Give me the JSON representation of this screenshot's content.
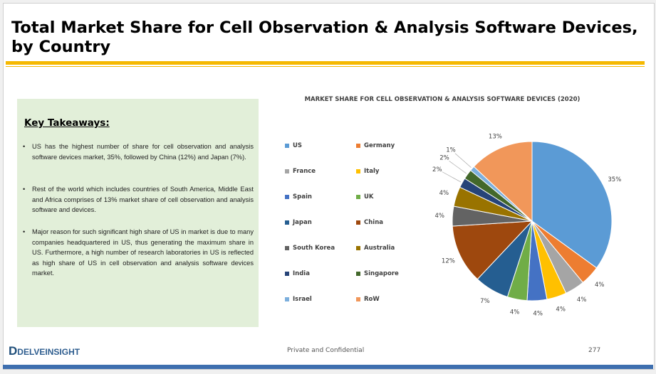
{
  "header": {
    "title": "Total Market Share for Cell Observation & Analysis Software Devices, by Country"
  },
  "takeaways": {
    "heading": "Key Takeaways:",
    "bullets": [
      "US has the highest number of share for cell observation and analysis software devices market, 35%, followed by China (12%) and Japan (7%).",
      "Rest of the world which includes countries of South America, Middle East and Africa comprises of 13% market share of cell observation and analysis software and devices.",
      "Major reason for such significant high share of US in market is due to many companies headquartered in US, thus generating the maximum share in US. Furthermore, a high number of research laboratories in US is reflected as high share of US in cell observation and analysis software devices market."
    ]
  },
  "chart_data": {
    "type": "pie",
    "title": "MARKET SHARE FOR CELL OBSERVATION & ANALYSIS SOFTWARE DEVICES (2020)",
    "legend_placement": "left",
    "categories": [
      "US",
      "Germany",
      "France",
      "Italy",
      "Spain",
      "UK",
      "Japan",
      "China",
      "South Korea",
      "Australia",
      "India",
      "Singapore",
      "Israel",
      "RoW"
    ],
    "values": [
      35,
      4,
      4,
      4,
      4,
      4,
      7,
      12,
      4,
      4,
      2,
      2,
      1,
      13
    ],
    "labels": [
      "35%",
      "4%",
      "4%",
      "4%",
      "4%",
      "4%",
      "7%",
      "12%",
      "4%",
      "4%",
      "2%",
      "2%",
      "1%",
      "13%"
    ],
    "colors": [
      "#5b9bd5",
      "#ed7d31",
      "#a5a5a5",
      "#ffc000",
      "#4472c4",
      "#70ad47",
      "#255e91",
      "#9e480e",
      "#636363",
      "#997300",
      "#264478",
      "#43682b",
      "#7cafdd",
      "#f1975a"
    ]
  },
  "footer": {
    "logo": "DELVEINSIGHT",
    "confidential": "Private and Confidential",
    "page": "277"
  }
}
